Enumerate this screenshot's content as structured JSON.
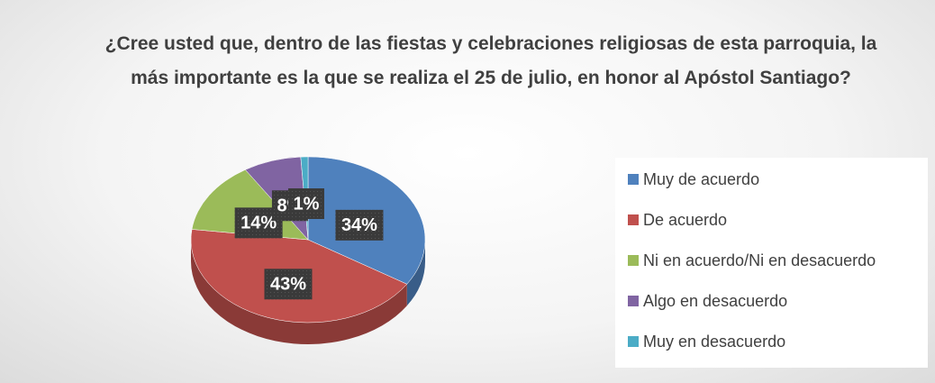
{
  "chart_data": {
    "type": "pie",
    "title": "¿Cree usted que, dentro de las fiestas y celebraciones religiosas de esta parroquia, la más importante es la que se realiza el 25 de julio, en honor al Apóstol Santiago?",
    "categories": [
      "Muy de acuerdo",
      "De acuerdo",
      "Ni en acuerdo/Ni en desacuerdo",
      "Algo en desacuerdo",
      "Muy en desacuerdo"
    ],
    "values": [
      34,
      43,
      14,
      8,
      1
    ],
    "value_labels": [
      "34%",
      "43%",
      "14%",
      "8%",
      "1%"
    ],
    "colors": [
      "#4f81bd",
      "#c0504d",
      "#9bbb59",
      "#8064a2",
      "#4bacc6"
    ],
    "legend": "right"
  }
}
